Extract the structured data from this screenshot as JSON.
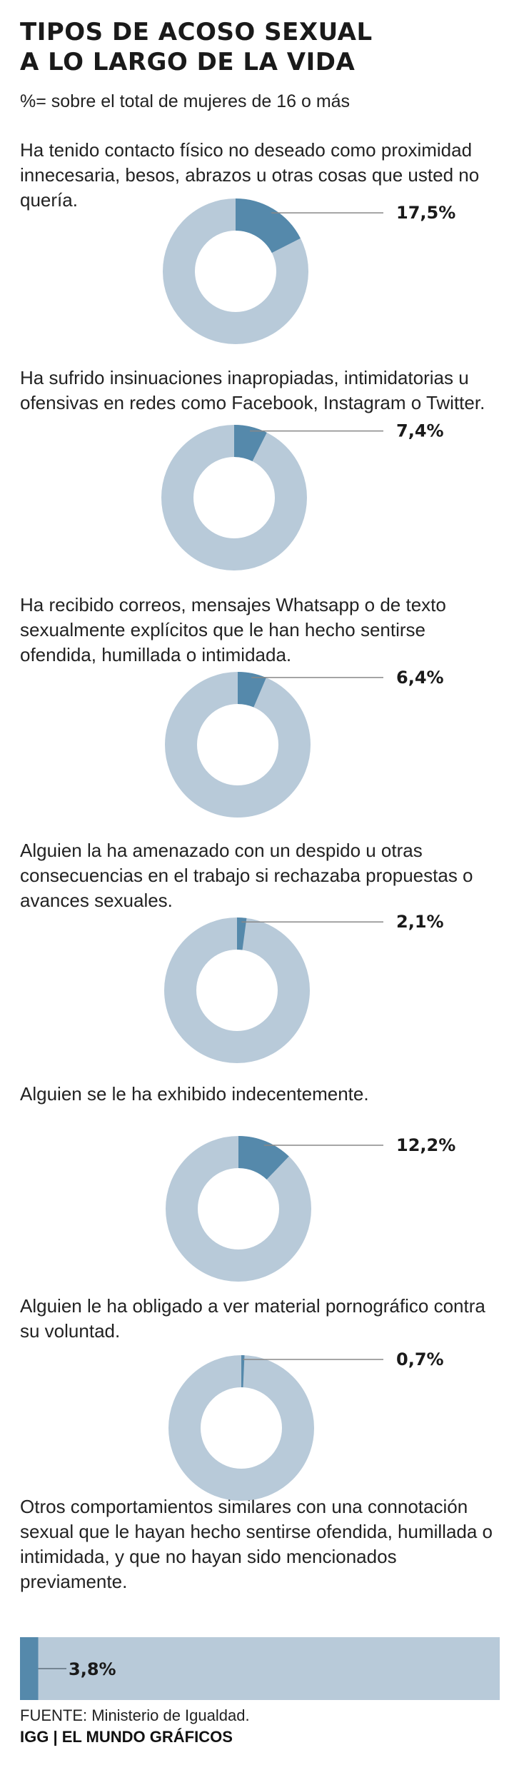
{
  "title_lines": [
    "TIPOS DE ACOSO SEXUAL",
    "A LO LARGO DE LA VIDA"
  ],
  "subtitle": "%= sobre el total de mujeres de 16 o más",
  "colors": {
    "highlight": "#5589ab",
    "base": "#b8cad9",
    "leader": "#888888"
  },
  "chart_data": {
    "type": "pie",
    "unit": "%",
    "items": [
      {
        "label": "Ha tenido contacto físico no deseado como proximidad innecesaria, besos, abrazos u otras cosas que usted no quería.",
        "value": 17.5,
        "value_label": "17,5%",
        "chart": "donut"
      },
      {
        "label": "Ha sufrido insinuaciones inapropiadas, intimidatorias u ofensivas en redes como Facebook, Instagram o Twitter.",
        "value": 7.4,
        "value_label": "7,4%",
        "chart": "donut"
      },
      {
        "label": "Ha recibido correos, mensajes Whatsapp o de texto sexualmente explícitos que le han hecho sentirse ofendida, humillada o intimidada.",
        "value": 6.4,
        "value_label": "6,4%",
        "chart": "donut"
      },
      {
        "label": "Alguien la ha amenazado con un despido u otras consecuencias en el trabajo si rechazaba propuestas o avances sexuales.",
        "value": 2.1,
        "value_label": "2,1%",
        "chart": "donut"
      },
      {
        "label": "Alguien se le ha exhibido indecentemente.",
        "value": 12.2,
        "value_label": "12,2%",
        "chart": "donut"
      },
      {
        "label": "Alguien le ha obligado a ver material pornográfico contra su voluntad.",
        "value": 0.7,
        "value_label": "0,7%",
        "chart": "donut"
      },
      {
        "label": "Otros comportamientos similares con una connotación sexual que le hayan hecho sentirse ofendida, humillada o intimidada, y que no hayan sido mencionados previamente.",
        "value": 3.8,
        "value_label": "3,8%",
        "chart": "bar"
      }
    ]
  },
  "footer": {
    "source": "FUENTE: Ministerio de Igualdad.",
    "credit": "IGG | EL MUNDO GRÁFICOS"
  }
}
